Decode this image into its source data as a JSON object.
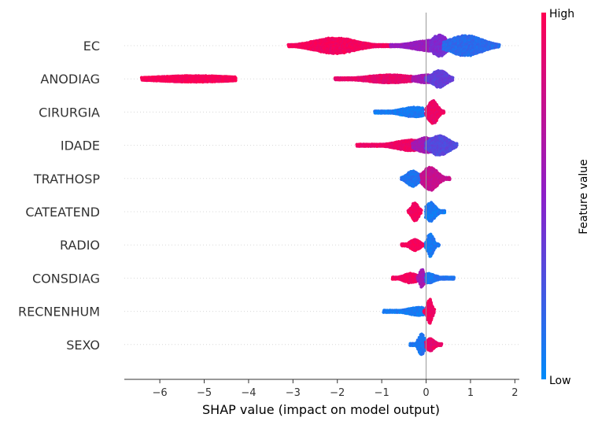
{
  "chart_data": {
    "type": "scatter",
    "subtype": "shap-beeswarm",
    "xlabel": "SHAP value (impact on model output)",
    "xlim": [
      -6.8,
      2.1
    ],
    "xticks": [
      -6,
      -5,
      -4,
      -3,
      -2,
      -1,
      0,
      1,
      2
    ],
    "xtick_labels": [
      "−6",
      "−5",
      "−4",
      "−3",
      "−2",
      "−1",
      "0",
      "1",
      "2"
    ],
    "zero_line": 0,
    "colorbar": {
      "title": "Feature value",
      "high_label": "High",
      "low_label": "Low",
      "high_color": "#ff0052",
      "mid_color": "#8c1fc9",
      "low_color": "#008bfa"
    },
    "features": [
      {
        "name": "EC",
        "clusters": [
          {
            "min": -3.1,
            "max": -0.75,
            "peak": -2.05,
            "spread": 0.45,
            "h": 10,
            "c": 0.95
          },
          {
            "min": -0.8,
            "max": 0.3,
            "peak": 0.15,
            "spread": 0.4,
            "h": 7,
            "c": 0.55
          },
          {
            "min": 0.1,
            "max": 0.55,
            "peak": 0.3,
            "spread": 0.15,
            "h": 14,
            "c": 0.45
          },
          {
            "min": 0.4,
            "max": 1.65,
            "peak": 0.9,
            "spread": 0.35,
            "h": 13,
            "c": 0.15
          }
        ]
      },
      {
        "name": "ANODIAG",
        "clusters": [
          {
            "min": -6.4,
            "max": -4.3,
            "peak": -5.2,
            "spread": 0.9,
            "h": 4,
            "c": 0.97
          },
          {
            "min": -2.05,
            "max": -0.3,
            "peak": -0.8,
            "spread": 0.5,
            "h": 5,
            "c": 0.9
          },
          {
            "min": -0.3,
            "max": 0.2,
            "peak": 0.0,
            "spread": 0.25,
            "h": 5,
            "c": 0.6
          },
          {
            "min": 0.0,
            "max": 0.6,
            "peak": 0.3,
            "spread": 0.15,
            "h": 11,
            "c": 0.35
          }
        ]
      },
      {
        "name": "CIRURGIA",
        "clusters": [
          {
            "min": -1.15,
            "max": -0.05,
            "peak": -0.25,
            "spread": 0.3,
            "h": 6,
            "c": 0.08
          },
          {
            "min": 0.0,
            "max": 0.4,
            "peak": 0.15,
            "spread": 0.1,
            "h": 15,
            "c": 0.92
          }
        ]
      },
      {
        "name": "IDADE",
        "clusters": [
          {
            "min": -1.55,
            "max": -0.1,
            "peak": -0.3,
            "spread": 0.35,
            "h": 7,
            "c": 0.92
          },
          {
            "min": -0.3,
            "max": 0.2,
            "peak": 0.0,
            "spread": 0.2,
            "h": 10,
            "c": 0.6
          },
          {
            "min": 0.0,
            "max": 0.7,
            "peak": 0.3,
            "spread": 0.2,
            "h": 13,
            "c": 0.3
          }
        ]
      },
      {
        "name": "TRATHOSP",
        "clusters": [
          {
            "min": -0.55,
            "max": -0.05,
            "peak": -0.3,
            "spread": 0.12,
            "h": 10,
            "c": 0.12
          },
          {
            "min": -0.1,
            "max": 0.55,
            "peak": 0.1,
            "spread": 0.15,
            "h": 15,
            "c": 0.75
          }
        ]
      },
      {
        "name": "CATEATEND",
        "clusters": [
          {
            "min": -0.4,
            "max": -0.1,
            "peak": -0.25,
            "spread": 0.07,
            "h": 12,
            "c": 0.95
          },
          {
            "min": 0.0,
            "max": 0.45,
            "peak": 0.1,
            "spread": 0.1,
            "h": 12,
            "c": 0.08
          }
        ]
      },
      {
        "name": "RADIO",
        "clusters": [
          {
            "min": -0.55,
            "max": -0.05,
            "peak": -0.25,
            "spread": 0.1,
            "h": 7,
            "c": 0.95
          },
          {
            "min": 0.0,
            "max": 0.3,
            "peak": 0.1,
            "spread": 0.06,
            "h": 15,
            "c": 0.08
          }
        ]
      },
      {
        "name": "CONSDIAG",
        "clusters": [
          {
            "min": -0.75,
            "max": -0.15,
            "peak": -0.35,
            "spread": 0.15,
            "h": 6,
            "c": 0.95
          },
          {
            "min": -0.2,
            "max": 0.0,
            "peak": -0.1,
            "spread": 0.05,
            "h": 12,
            "c": 0.6
          },
          {
            "min": 0.0,
            "max": 0.65,
            "peak": 0.05,
            "spread": 0.15,
            "h": 6,
            "c": 0.1
          }
        ]
      },
      {
        "name": "RECNENHUM",
        "clusters": [
          {
            "min": -0.95,
            "max": -0.05,
            "peak": -0.15,
            "spread": 0.25,
            "h": 5,
            "c": 0.08
          },
          {
            "min": -0.05,
            "max": 0.2,
            "peak": 0.08,
            "spread": 0.05,
            "h": 16,
            "c": 0.95
          }
        ]
      },
      {
        "name": "SEXO",
        "clusters": [
          {
            "min": -0.35,
            "max": 0.0,
            "peak": -0.1,
            "spread": 0.06,
            "h": 14,
            "c": 0.1
          },
          {
            "min": 0.0,
            "max": 0.35,
            "peak": 0.1,
            "spread": 0.08,
            "h": 8,
            "c": 0.9
          }
        ]
      }
    ]
  }
}
